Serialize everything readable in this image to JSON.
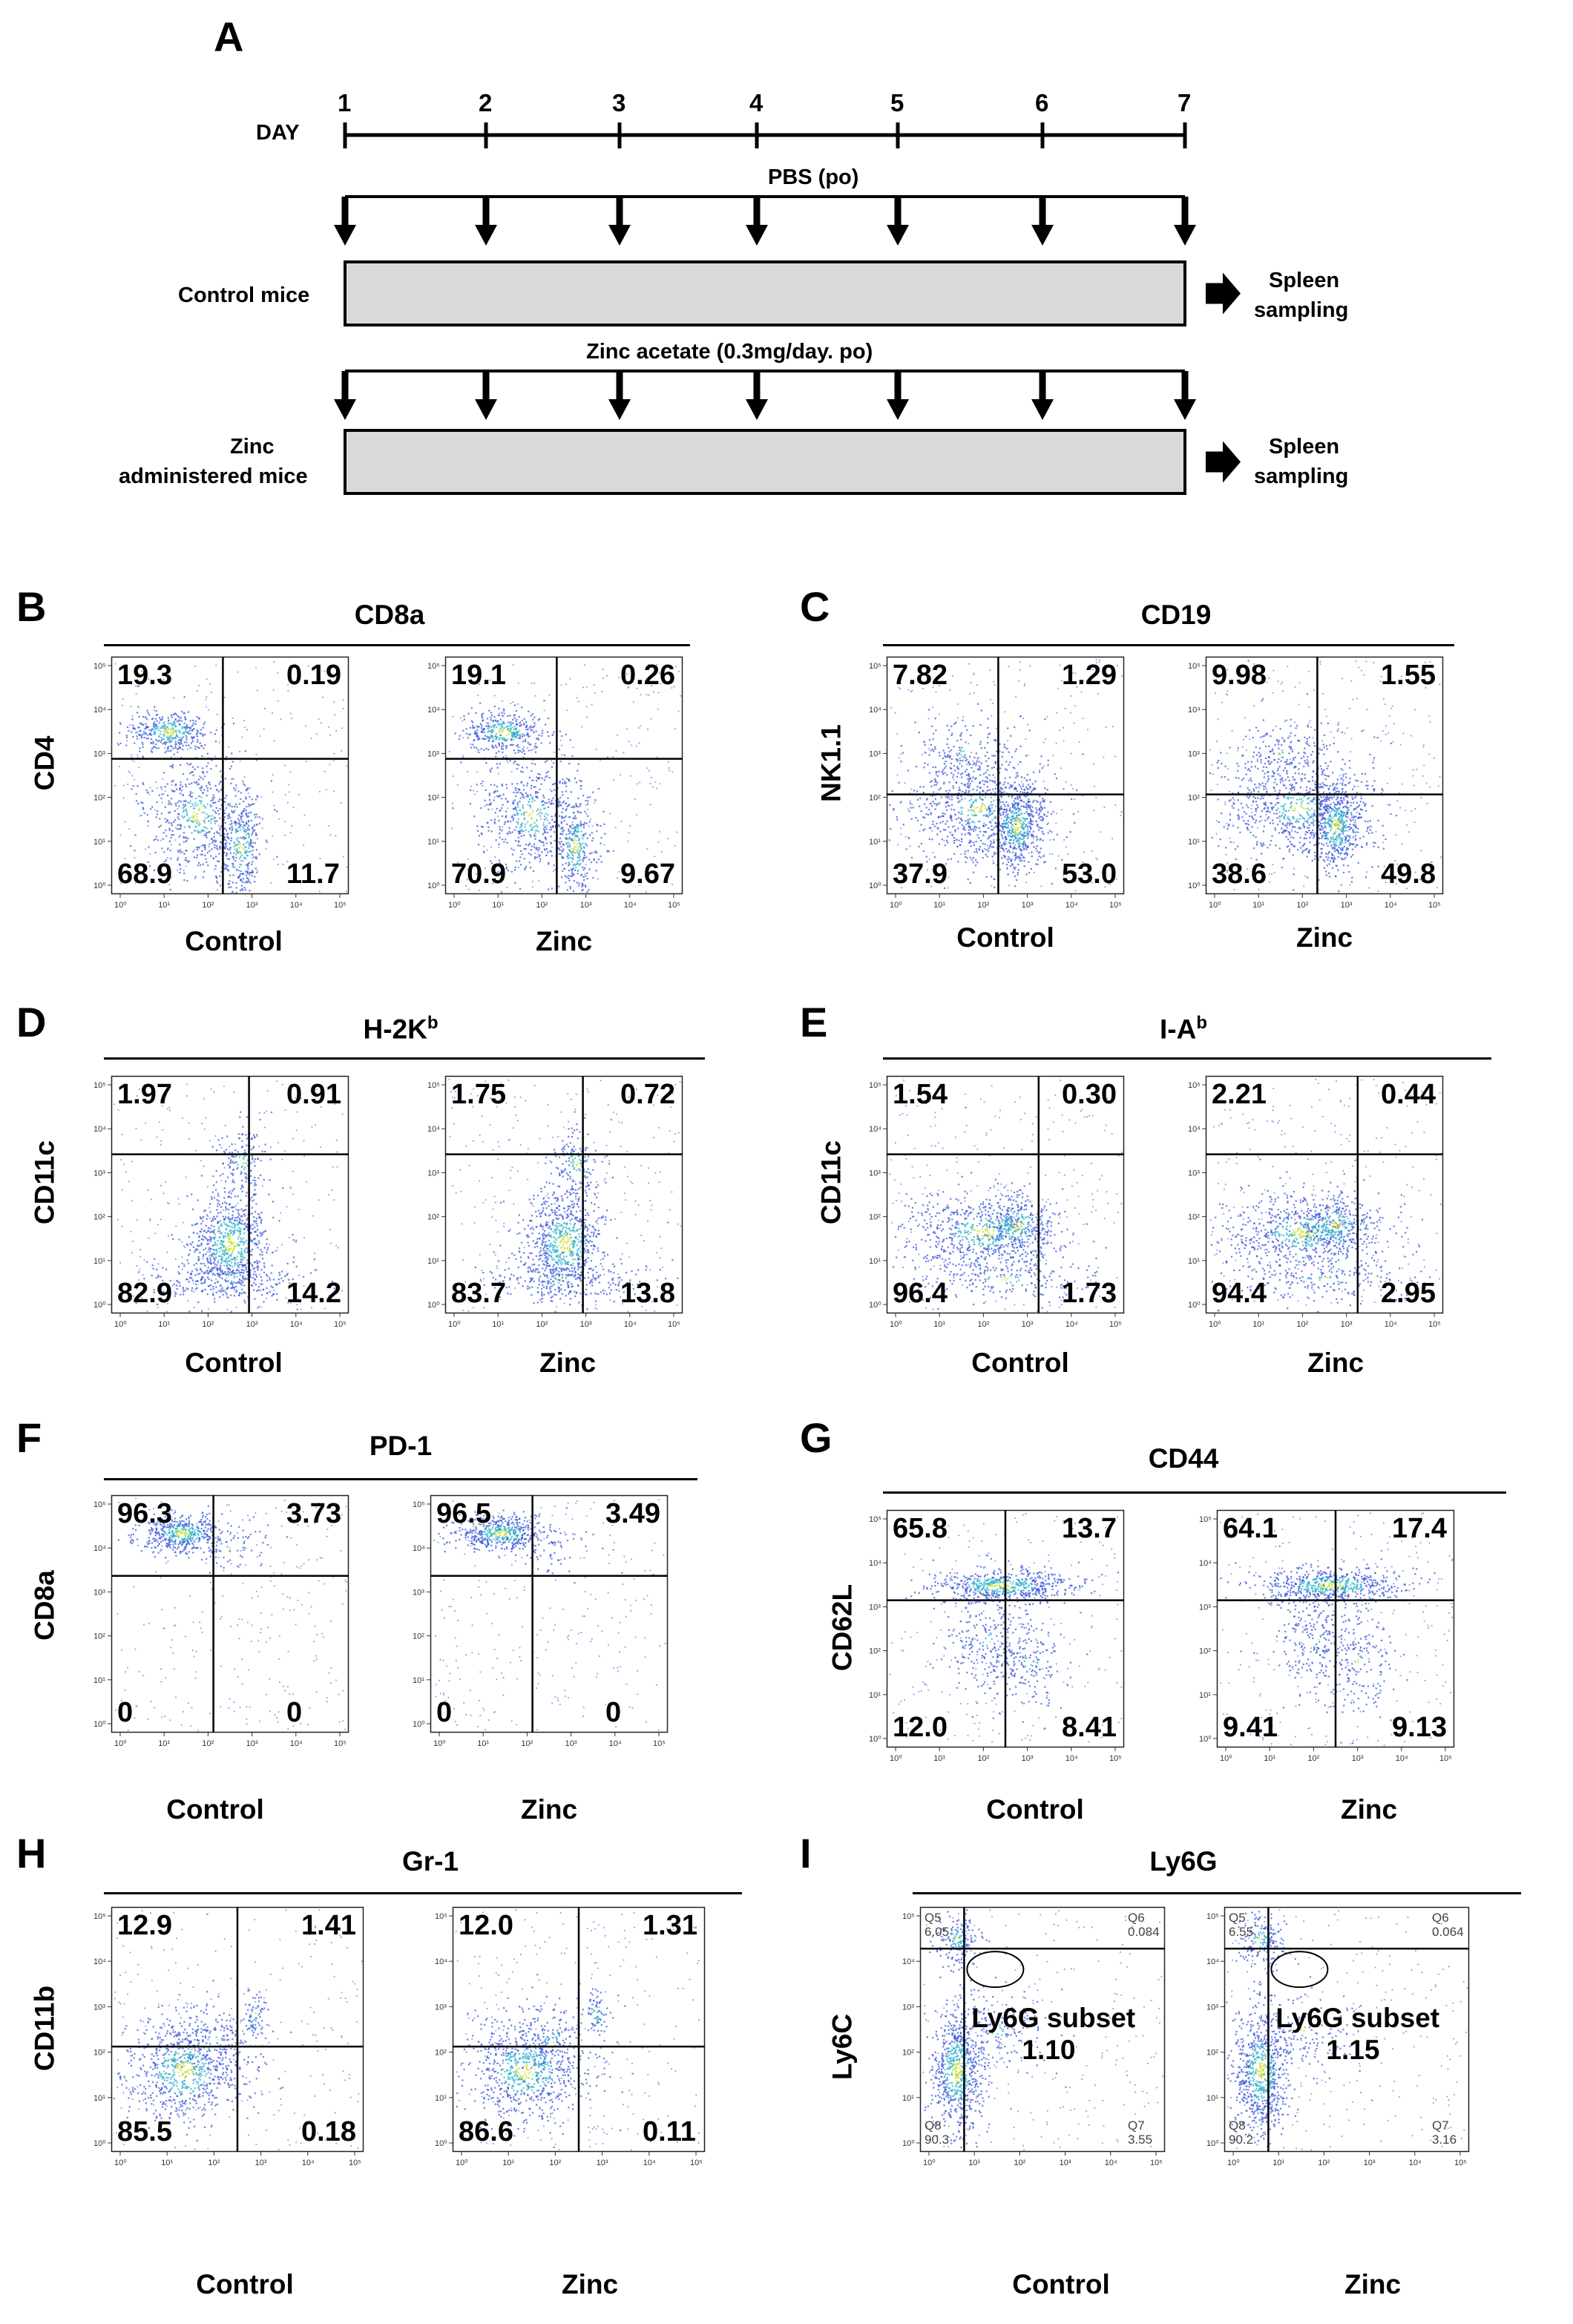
{
  "panelA": {
    "label": "A",
    "day_label": "DAY",
    "days": [
      "1",
      "2",
      "3",
      "4",
      "5",
      "6",
      "7"
    ],
    "pbs_label": "PBS (po)",
    "control_label": "Control mice",
    "zinc_treat_label": "Zinc acetate (0.3mg/day. po)",
    "zinc_label_1": "Zinc",
    "zinc_label_2": "administered mice",
    "outcome_1": "Spleen",
    "outcome_2": "sampling"
  },
  "panels": [
    {
      "label": "B",
      "title": "CD8a",
      "title_sup": "",
      "ylabel": "CD4",
      "left": {
        "xlabel": "Control",
        "q": [
          "19.3",
          "0.19",
          "68.9",
          "11.7"
        ]
      },
      "right": {
        "xlabel": "Zinc",
        "q": [
          "19.1",
          "0.26",
          "70.9",
          "9.67"
        ]
      }
    },
    {
      "label": "C",
      "title": "CD19",
      "title_sup": "",
      "ylabel": "NK1.1",
      "left": {
        "xlabel": "Control",
        "q": [
          "7.82",
          "1.29",
          "37.9",
          "53.0"
        ]
      },
      "right": {
        "xlabel": "Zinc",
        "q": [
          "9.98",
          "1.55",
          "38.6",
          "49.8"
        ]
      }
    },
    {
      "label": "D",
      "title": "H-2K",
      "title_sup": "b",
      "ylabel": "CD11c",
      "left": {
        "xlabel": "Control",
        "q": [
          "1.97",
          "0.91",
          "82.9",
          "14.2"
        ]
      },
      "right": {
        "xlabel": "Zinc",
        "q": [
          "1.75",
          "0.72",
          "83.7",
          "13.8"
        ]
      }
    },
    {
      "label": "E",
      "title": "I-A",
      "title_sup": "b",
      "ylabel": "CD11c",
      "left": {
        "xlabel": "Control",
        "q": [
          "1.54",
          "0.30",
          "96.4",
          "1.73"
        ]
      },
      "right": {
        "xlabel": "Zinc",
        "q": [
          "2.21",
          "0.44",
          "94.4",
          "2.95"
        ]
      }
    },
    {
      "label": "F",
      "title": "PD-1",
      "title_sup": "",
      "ylabel": "CD8a",
      "left": {
        "xlabel": "Control",
        "q": [
          "96.3",
          "3.73",
          "0",
          "0"
        ]
      },
      "right": {
        "xlabel": "Zinc",
        "q": [
          "96.5",
          "3.49",
          "0",
          "0"
        ]
      }
    },
    {
      "label": "G",
      "title": "CD44",
      "title_sup": "",
      "ylabel": "CD62L",
      "left": {
        "xlabel": "Control",
        "q": [
          "65.8",
          "13.7",
          "12.0",
          "8.41"
        ]
      },
      "right": {
        "xlabel": "Zinc",
        "q": [
          "64.1",
          "17.4",
          "9.41",
          "9.13"
        ]
      }
    },
    {
      "label": "H",
      "title": "Gr-1",
      "title_sup": "",
      "ylabel": "CD11b",
      "left": {
        "xlabel": "Control",
        "q": [
          "12.9",
          "1.41",
          "85.5",
          "0.18"
        ]
      },
      "right": {
        "xlabel": "Zinc",
        "q": [
          "12.0",
          "1.31",
          "86.6",
          "0.11"
        ]
      }
    },
    {
      "label": "I",
      "title": "Ly6G",
      "title_sup": "",
      "ylabel": "Ly6C",
      "left": {
        "xlabel": "Control",
        "q": [
          "6.05",
          "0.084",
          "90.3",
          "3.55"
        ],
        "subset_label": "Ly6G subset",
        "subset_value": "1.10",
        "subset_small": "1.10"
      },
      "right": {
        "xlabel": "Zinc",
        "q": [
          "6.55",
          "0.064",
          "90.2",
          "3.16"
        ],
        "subset_label": "Ly6G subset",
        "subset_value": "1.15",
        "subset_small": "1.15"
      }
    }
  ],
  "panelI_gate_names": [
    "Q5",
    "Q6",
    "Q8",
    "Q7"
  ],
  "axis_ticks": [
    "10⁰",
    "10¹",
    "10²",
    "10³",
    "10⁴",
    "10⁵"
  ],
  "colors": {
    "density_low": "#3a58d6",
    "density_mid": "#2fb3c9",
    "density_high": "#c8e23a"
  }
}
